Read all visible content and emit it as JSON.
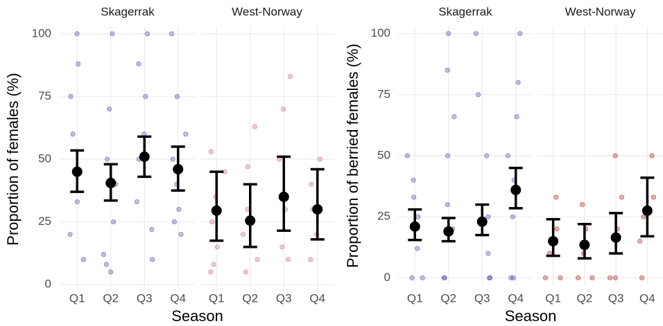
{
  "chart_data": [
    {
      "type": "errorbar",
      "ylabel": "Proportion of females (%)",
      "xlabel": "Season",
      "ylim": [
        -3,
        103
      ],
      "yticks": [
        0,
        25,
        50,
        75,
        100
      ],
      "grid": true,
      "facets": [
        {
          "title": "Skagerrak",
          "color": "#4a4aa8",
          "categories": [
            "Q1",
            "Q2",
            "Q3",
            "Q4"
          ],
          "means": [
            45,
            40.5,
            51,
            46
          ],
          "lower": [
            37,
            33.5,
            43,
            37.5
          ],
          "upper": [
            53.5,
            48,
            59,
            55
          ],
          "points": [
            [
              100,
              88,
              75,
              60,
              45,
              33,
              20,
              10
            ],
            [
              100,
              70,
              50,
              40,
              25,
              12,
              5,
              8
            ],
            [
              100,
              88,
              75,
              60,
              50,
              33,
              22,
              10
            ],
            [
              100,
              75,
              60,
              50,
              40,
              30,
              20,
              25
            ]
          ]
        },
        {
          "title": "West-Norway",
          "color": "#c86a6a",
          "categories": [
            "Q1",
            "Q2",
            "Q3",
            "Q4"
          ],
          "means": [
            29.5,
            25.5,
            35,
            30
          ],
          "lower": [
            17.5,
            15,
            21.5,
            18
          ],
          "upper": [
            45,
            40,
            51,
            46
          ],
          "points": [
            [
              53,
              45,
              35,
              25,
              15,
              8,
              5
            ],
            [
              63,
              47,
              30,
              20,
              10,
              5
            ],
            [
              83,
              70,
              50,
              30,
              15,
              10
            ],
            [
              50,
              40,
              30,
              20,
              10
            ]
          ]
        }
      ]
    },
    {
      "type": "errorbar",
      "ylabel": "Proportion of berried females (%)",
      "xlabel": "Season",
      "ylim": [
        -3,
        103
      ],
      "yticks": [
        0,
        25,
        50,
        75,
        100
      ],
      "grid": true,
      "facets": [
        {
          "title": "Skagerrak",
          "color": "#4a4aa8",
          "categories": [
            "Q1",
            "Q2",
            "Q3",
            "Q4"
          ],
          "means": [
            21,
            19,
            23,
            36
          ],
          "lower": [
            15.5,
            15,
            17.5,
            28.5
          ],
          "upper": [
            28,
            24.5,
            30,
            45
          ],
          "points": [
            [
              50,
              40,
              25,
              12,
              0,
              0,
              33
            ],
            [
              100,
              85,
              66,
              50,
              30,
              0,
              0,
              20
            ],
            [
              100,
              75,
              50,
              25,
              0,
              0,
              10
            ],
            [
              100,
              80,
              66,
              50,
              25,
              0,
              0,
              40
            ]
          ]
        },
        {
          "title": "West-Norway",
          "color": "#b02020",
          "categories": [
            "Q1",
            "Q2",
            "Q3",
            "Q4"
          ],
          "means": [
            15,
            13.5,
            16.5,
            27.5
          ],
          "lower": [
            9,
            8,
            10,
            17
          ],
          "upper": [
            24,
            22,
            26.5,
            41
          ],
          "points": [
            [
              33,
              20,
              10,
              0,
              0
            ],
            [
              30,
              20,
              10,
              0,
              0
            ],
            [
              50,
              33,
              20,
              0,
              0
            ],
            [
              50,
              33,
              25,
              15,
              0
            ]
          ]
        }
      ]
    }
  ]
}
